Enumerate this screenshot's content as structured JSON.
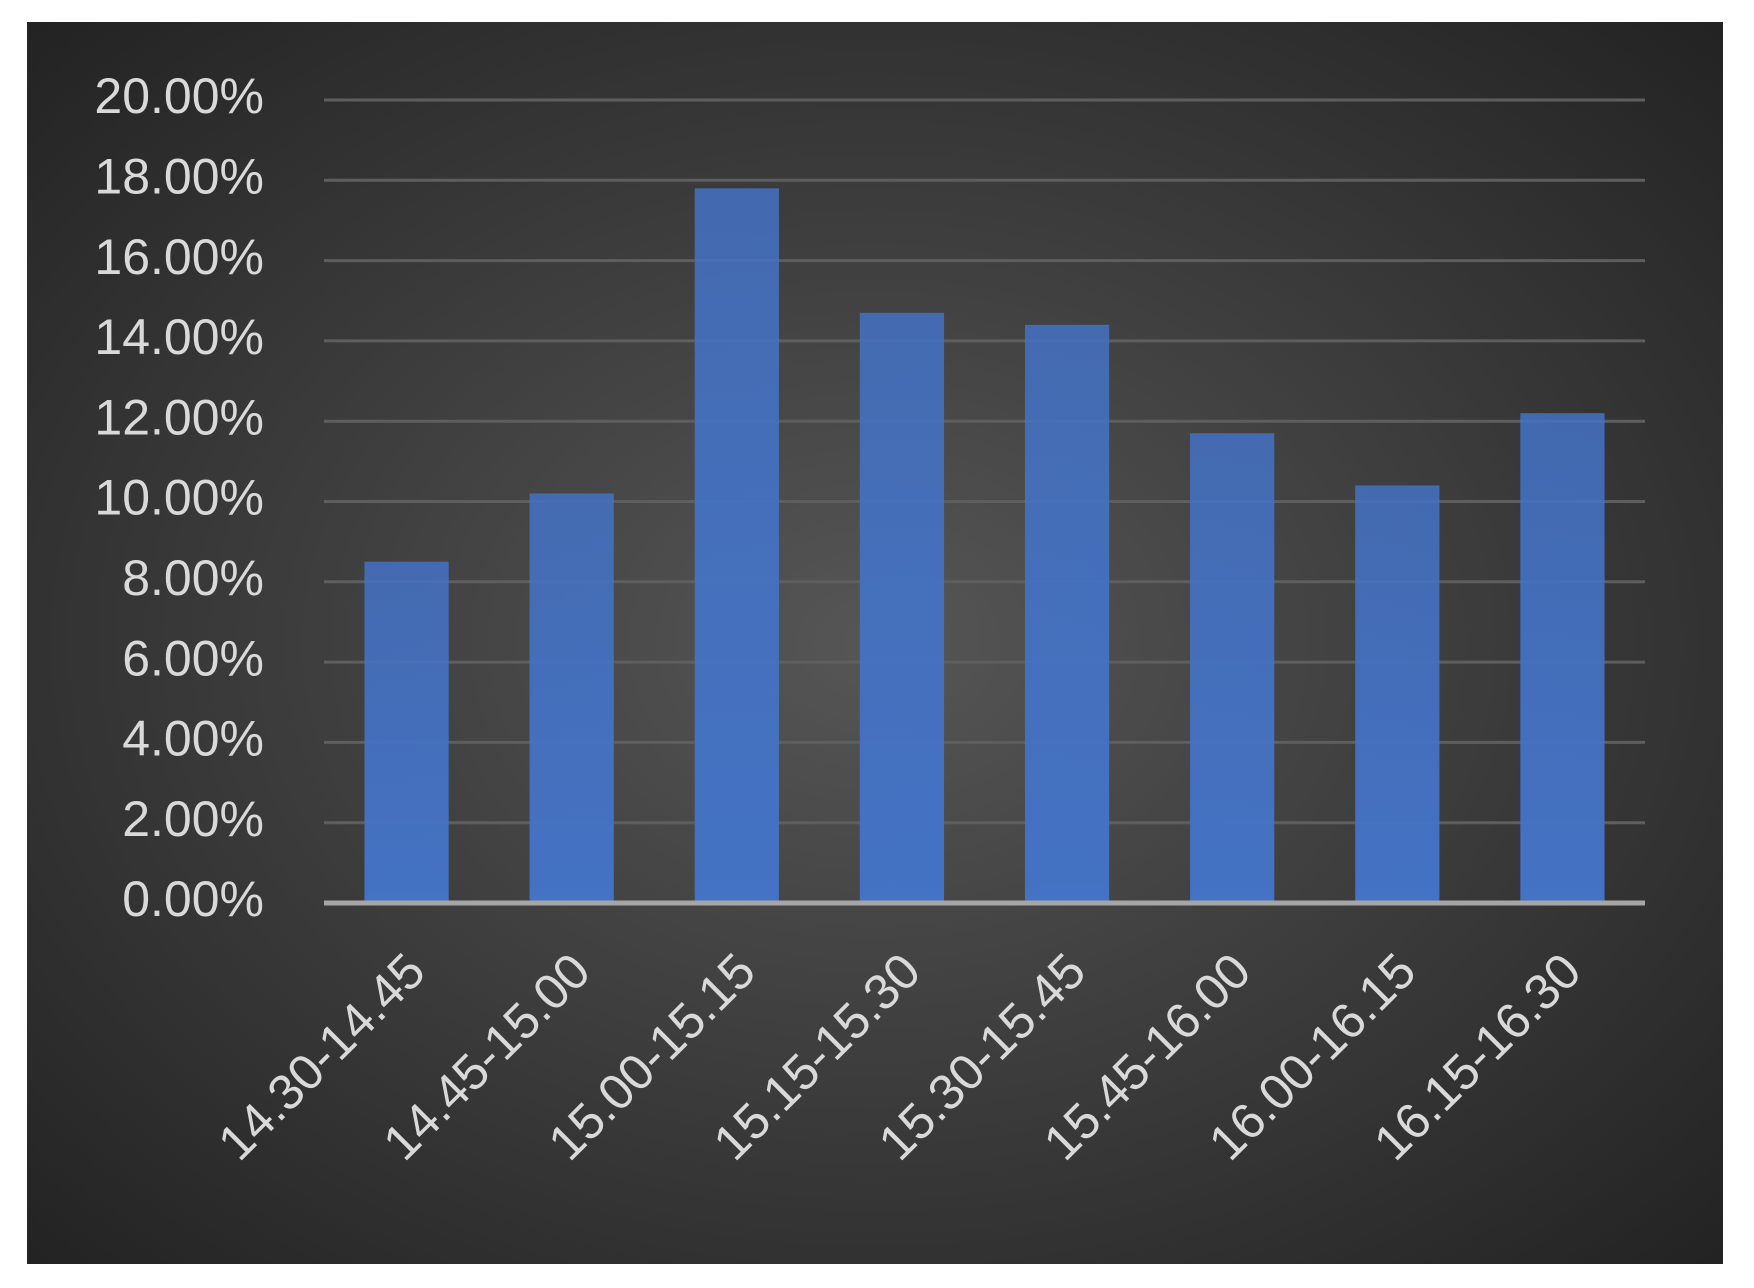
{
  "chart_data": {
    "type": "bar",
    "categories": [
      "14.30-14.45",
      "14.45-15.00",
      "15.00-15.15",
      "15.15-15.30",
      "15.30-15.45",
      "15.45-16.00",
      "16.00-16.15",
      "16.15-16.30"
    ],
    "values": [
      8.5,
      10.2,
      17.8,
      14.7,
      14.4,
      11.7,
      10.4,
      12.2
    ],
    "color": "#4472c4",
    "ylim": [
      0,
      20
    ],
    "yticks": [
      {
        "value": 0,
        "label": "0.00%"
      },
      {
        "value": 2,
        "label": "2.00%"
      },
      {
        "value": 4,
        "label": "4.00%"
      },
      {
        "value": 6,
        "label": "6.00%"
      },
      {
        "value": 8,
        "label": "8.00%"
      },
      {
        "value": 10,
        "label": "10.00%"
      },
      {
        "value": 12,
        "label": "12.00%"
      },
      {
        "value": 14,
        "label": "14.00%"
      },
      {
        "value": 16,
        "label": "16.00%"
      },
      {
        "value": 18,
        "label": "18.00%"
      },
      {
        "value": 20,
        "label": "20.00%"
      }
    ],
    "grid": true
  }
}
